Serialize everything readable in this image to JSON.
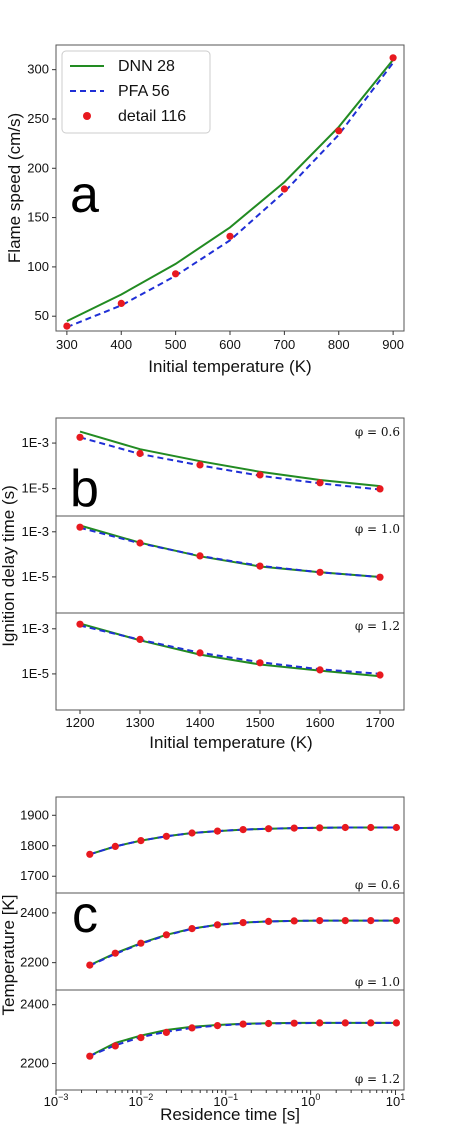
{
  "colors": {
    "dnn": "#228b22",
    "pfa": "#1f2fd6",
    "detail": "#e8191f",
    "frame": "#555555"
  },
  "chart_data": [
    {
      "type": "line",
      "panel_letter": "a",
      "xlabel": "Initial temperature (K)",
      "ylabel": "Flame speed (cm/s)",
      "xlim": [
        280,
        920
      ],
      "ylim": [
        35,
        325
      ],
      "xticks": [
        300,
        400,
        500,
        600,
        700,
        800,
        900
      ],
      "yticks": [
        50,
        100,
        150,
        200,
        250,
        300
      ],
      "legend_placement": "top-left",
      "legend": [
        {
          "label": "DNN 28",
          "kind": "line-solid"
        },
        {
          "label": "PFA 56",
          "kind": "line-dashed"
        },
        {
          "label": "detail 116",
          "kind": "marker"
        }
      ],
      "x": [
        300,
        400,
        500,
        600,
        700,
        800,
        900
      ],
      "series": [
        {
          "name": "DNN 28",
          "kind": "line-solid",
          "values": [
            45,
            72,
            103,
            140,
            186,
            242,
            310
          ]
        },
        {
          "name": "PFA 56",
          "kind": "line-dashed",
          "values": [
            39,
            61,
            91,
            127,
            176,
            234,
            307
          ]
        },
        {
          "name": "detail 116",
          "kind": "marker",
          "values": [
            40,
            63,
            93,
            131,
            179,
            238,
            312
          ]
        }
      ]
    },
    {
      "type": "line",
      "panel_letter": "b",
      "xlabel": "Initial temperature (K)",
      "ylabel": "Ignition delay time (s)",
      "xlim": [
        1160,
        1740
      ],
      "xticks": [
        1200,
        1300,
        1400,
        1500,
        1600,
        1700
      ],
      "y_scale": "log",
      "subplots": [
        {
          "phi_label": "φ = 0.6",
          "ylim_log10": [
            -6.2,
            -1.9
          ],
          "yticks": [
            "1E-3",
            "1E-5"
          ],
          "x": [
            1200,
            1300,
            1400,
            1500,
            1600,
            1700
          ],
          "series": [
            {
              "name": "DNN 28",
              "kind": "line-solid",
              "values": [
                0.0032,
                0.00054,
                0.00016,
                5.5e-05,
                2.4e-05,
                1.3e-05
              ]
            },
            {
              "name": "PFA 56",
              "kind": "line-dashed",
              "values": [
                0.0018,
                0.00033,
                0.000105,
                3.7e-05,
                1.7e-05,
                9.2e-06
              ]
            },
            {
              "name": "detail 116",
              "kind": "marker",
              "values": [
                0.0018,
                0.00035,
                0.00011,
                4e-05,
                1.8e-05,
                9.8e-06
              ]
            }
          ]
        },
        {
          "phi_label": "φ = 1.0",
          "ylim_log10": [
            -6.6,
            -2.3
          ],
          "yticks": [
            "1E-3",
            "1E-5"
          ],
          "x": [
            1200,
            1300,
            1400,
            1500,
            1600,
            1700
          ],
          "series": [
            {
              "name": "DNN 28",
              "kind": "line-solid",
              "values": [
                0.0019,
                0.00033,
                8.2e-05,
                2.9e-05,
                1.6e-05,
                9.9e-06
              ]
            },
            {
              "name": "PFA 56",
              "kind": "line-dashed",
              "values": [
                0.0015,
                0.00031,
                8.5e-05,
                3.1e-05,
                1.6e-05,
                9.9e-06
              ]
            },
            {
              "name": "detail 116",
              "kind": "marker",
              "values": [
                0.0016,
                0.00032,
                8.5e-05,
                3e-05,
                1.6e-05,
                9.7e-06
              ]
            }
          ]
        },
        {
          "phi_label": "φ = 1.2",
          "ylim_log10": [
            -6.6,
            -2.3
          ],
          "yticks": [
            "1E-3",
            "1E-5"
          ],
          "x": [
            1200,
            1300,
            1400,
            1500,
            1600,
            1700
          ],
          "series": [
            {
              "name": "DNN 28",
              "kind": "line-solid",
              "values": [
                0.0017,
                0.00031,
                7.2e-05,
                2.6e-05,
                1.4e-05,
                7.9e-06
              ]
            },
            {
              "name": "PFA 56",
              "kind": "line-dashed",
              "values": [
                0.0014,
                0.00033,
                8.7e-05,
                3.3e-05,
                1.6e-05,
                1.01e-05
              ]
            },
            {
              "name": "detail 116",
              "kind": "marker",
              "values": [
                0.0016,
                0.00034,
                8.5e-05,
                3.1e-05,
                1.5e-05,
                8.9e-06
              ]
            }
          ]
        }
      ]
    },
    {
      "type": "line",
      "panel_letter": "c",
      "xlabel": "Residence time [s]",
      "ylabel": "Temperature [K]",
      "x_scale": "log",
      "xlim_log10": [
        -3,
        1.1
      ],
      "xticks": [
        "10^-3",
        "10^-2",
        "10^-1",
        "10^0",
        "10^1"
      ],
      "x": [
        0.0025,
        0.005,
        0.01,
        0.02,
        0.04,
        0.08,
        0.16,
        0.32,
        0.64,
        1.28,
        2.56,
        5.12,
        10.24
      ],
      "subplots": [
        {
          "phi_label": "φ = 0.6",
          "ylim": [
            1645,
            1960
          ],
          "yticks": [
            1700,
            1800,
            1900
          ],
          "series": [
            {
              "name": "DNN 28",
              "kind": "line-solid",
              "values": [
                1772,
                1798,
                1817,
                1831,
                1842,
                1848,
                1853,
                1856,
                1858,
                1859,
                1860,
                1860,
                1860
              ]
            },
            {
              "name": "PFA 56",
              "kind": "line-dashed",
              "values": [
                1772,
                1798,
                1817,
                1831,
                1842,
                1848,
                1853,
                1856,
                1858,
                1859,
                1860,
                1860,
                1860
              ]
            },
            {
              "name": "detail 116",
              "kind": "marker",
              "values": [
                1772,
                1798,
                1817,
                1831,
                1842,
                1848,
                1853,
                1856,
                1858,
                1859,
                1860,
                1860,
                1860
              ]
            }
          ]
        },
        {
          "phi_label": "φ = 1.0",
          "ylim": [
            2090,
            2480
          ],
          "yticks": [
            2200,
            2400
          ],
          "series": [
            {
              "name": "DNN 28",
              "kind": "line-solid",
              "values": [
                2190,
                2238,
                2278,
                2312,
                2337,
                2352,
                2361,
                2366,
                2368,
                2369,
                2369,
                2369,
                2369
              ]
            },
            {
              "name": "PFA 56",
              "kind": "line-dashed",
              "values": [
                2188,
                2235,
                2276,
                2310,
                2336,
                2352,
                2361,
                2366,
                2368,
                2369,
                2369,
                2369,
                2369
              ]
            },
            {
              "name": "detail 116",
              "kind": "marker",
              "values": [
                2190,
                2238,
                2278,
                2312,
                2337,
                2352,
                2361,
                2366,
                2368,
                2369,
                2369,
                2369,
                2369
              ]
            }
          ]
        },
        {
          "phi_label": "φ = 1.2",
          "ylim": [
            2110,
            2450
          ],
          "yticks": [
            2200,
            2400
          ],
          "series": [
            {
              "name": "DNN 28",
              "kind": "line-solid",
              "values": [
                2226,
                2270,
                2295,
                2314,
                2325,
                2331,
                2335,
                2337,
                2338,
                2338,
                2338,
                2338,
                2338
              ]
            },
            {
              "name": "PFA 56",
              "kind": "line-dashed",
              "values": [
                2226,
                2262,
                2290,
                2308,
                2321,
                2329,
                2334,
                2336,
                2337,
                2338,
                2338,
                2338,
                2338
              ]
            },
            {
              "name": "detail 116",
              "kind": "marker",
              "values": [
                2225,
                2260,
                2288,
                2306,
                2321,
                2329,
                2334,
                2336,
                2337,
                2338,
                2338,
                2338,
                2338
              ]
            }
          ]
        }
      ]
    }
  ]
}
